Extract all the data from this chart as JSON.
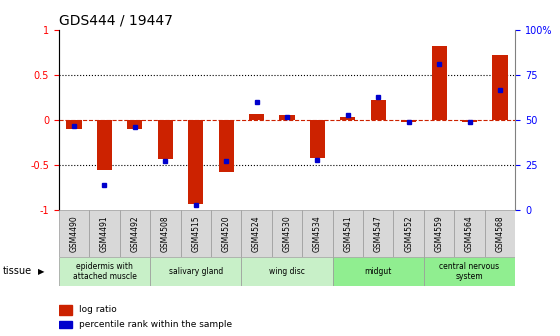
{
  "title": "GDS444 / 19447",
  "samples": [
    "GSM4490",
    "GSM4491",
    "GSM4492",
    "GSM4508",
    "GSM4515",
    "GSM4520",
    "GSM4524",
    "GSM4530",
    "GSM4534",
    "GSM4541",
    "GSM4547",
    "GSM4552",
    "GSM4559",
    "GSM4564",
    "GSM4568"
  ],
  "log_ratio": [
    -0.1,
    -0.55,
    -0.1,
    -0.43,
    -0.93,
    -0.58,
    0.07,
    0.06,
    -0.42,
    0.03,
    0.22,
    -0.02,
    0.82,
    -0.02,
    0.72
  ],
  "percentile": [
    47,
    14,
    46,
    27,
    3,
    27,
    60,
    52,
    28,
    53,
    63,
    49,
    81,
    49,
    67
  ],
  "tissue_labels": [
    "epidermis with\nattached muscle",
    "salivary gland",
    "wing disc",
    "midgut",
    "central nervous\nsystem"
  ],
  "tissue_colors": [
    "#c8f0c8",
    "#c8f0c8",
    "#c8f0c8",
    "#90ee90",
    "#90ee90"
  ],
  "tissue_ranges": [
    [
      0,
      3
    ],
    [
      3,
      6
    ],
    [
      6,
      9
    ],
    [
      9,
      12
    ],
    [
      12,
      15
    ]
  ],
  "bar_color": "#cc2200",
  "dot_color": "#0000cc",
  "ylim": [
    -1.0,
    1.0
  ],
  "left_yticks": [
    -1.0,
    -0.5,
    0.0,
    0.5,
    1.0
  ],
  "left_yticklabels": [
    "-1",
    "-0.5",
    "0",
    "0.5",
    "1"
  ],
  "right_yticks": [
    0,
    25,
    50,
    75,
    100
  ],
  "right_yticklabels": [
    "0",
    "25",
    "50",
    "75",
    "100%"
  ],
  "hline_color": "#cc2200",
  "legend_log": "log ratio",
  "legend_pct": "percentile rank within the sample",
  "title_fontsize": 10,
  "sample_label_fontsize": 5.5,
  "tissue_label_fontsize": 5.5,
  "legend_fontsize": 6.5,
  "axis_tick_fontsize": 7
}
